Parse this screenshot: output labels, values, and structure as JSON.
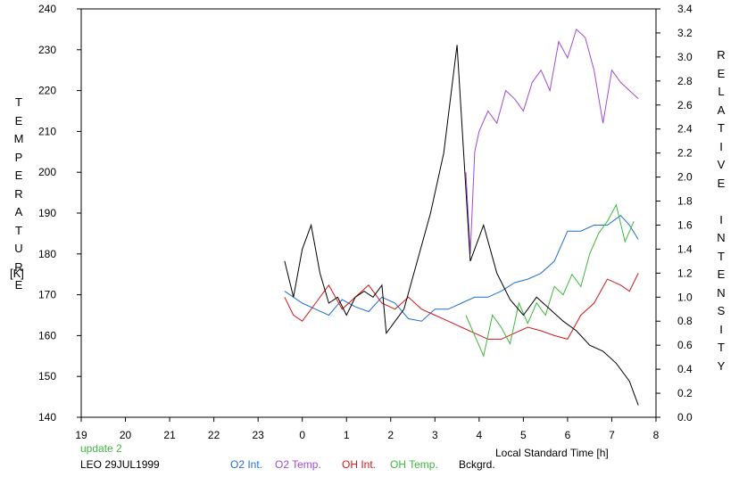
{
  "chart_data": {
    "type": "line",
    "xlabel": "Local Standard Time [h]",
    "ylabel_left": "TEMPERATURE",
    "ylabel_left_unit": "[K]",
    "ylabel_right": "RELATIVE INTENSITY",
    "xlim": [
      19,
      32
    ],
    "x_tick_labels": [
      "19",
      "20",
      "21",
      "22",
      "23",
      "0",
      "1",
      "2",
      "3",
      "4",
      "5",
      "6",
      "7",
      "8"
    ],
    "ylim_left": [
      140,
      240
    ],
    "y_left_ticks": [
      140,
      150,
      160,
      170,
      180,
      190,
      200,
      210,
      220,
      230,
      240
    ],
    "ylim_right": [
      0.0,
      3.4
    ],
    "y_right_ticks": [
      "0.0",
      "0.2",
      "0.4",
      "0.6",
      "0.8",
      "1.0",
      "1.2",
      "1.4",
      "1.6",
      "1.8",
      "2.0",
      "2.2",
      "2.4",
      "2.6",
      "2.8",
      "3.0",
      "3.2",
      "3.4"
    ],
    "grid": false,
    "series": [
      {
        "name": "O2 Int.",
        "color": "#1f6fd1",
        "axis": "right",
        "x": [
          23.6,
          23.8,
          24.0,
          24.3,
          24.6,
          24.9,
          25.2,
          25.5,
          25.8,
          26.1,
          26.4,
          26.7,
          27.0,
          27.3,
          27.6,
          27.9,
          28.2,
          28.5,
          28.8,
          29.1,
          29.4,
          29.7,
          30.0,
          30.3,
          30.6,
          30.9,
          31.2,
          31.4,
          31.6
        ],
        "y": [
          1.05,
          1.0,
          0.95,
          0.9,
          0.85,
          0.98,
          0.92,
          0.88,
          1.0,
          0.95,
          0.82,
          0.8,
          0.9,
          0.9,
          0.95,
          1.0,
          1.0,
          1.05,
          1.12,
          1.15,
          1.2,
          1.3,
          1.55,
          1.55,
          1.6,
          1.6,
          1.68,
          1.6,
          1.48
        ]
      },
      {
        "name": "O2 Temp.",
        "color": "#a04cd0",
        "axis": "left",
        "x": [
          27.7,
          27.8,
          27.9,
          28.0,
          28.2,
          28.4,
          28.6,
          28.8,
          29.0,
          29.2,
          29.4,
          29.6,
          29.8,
          30.0,
          30.2,
          30.4,
          30.6,
          30.8,
          31.0,
          31.2,
          31.4,
          31.6
        ],
        "y": [
          200,
          180,
          205,
          210,
          215,
          212,
          220,
          218,
          215,
          222,
          225,
          220,
          232,
          228,
          235,
          233,
          225,
          212,
          225,
          222,
          220,
          218
        ]
      },
      {
        "name": "OH Int.",
        "color": "#d01818",
        "axis": "right",
        "x": [
          23.6,
          23.8,
          24.0,
          24.3,
          24.6,
          24.9,
          25.2,
          25.5,
          25.8,
          26.1,
          26.4,
          26.7,
          27.0,
          27.3,
          27.6,
          27.9,
          28.2,
          28.5,
          28.8,
          29.1,
          29.4,
          29.7,
          30.0,
          30.3,
          30.6,
          30.9,
          31.2,
          31.4,
          31.6
        ],
        "y": [
          1.0,
          0.85,
          0.8,
          0.95,
          1.1,
          0.9,
          1.0,
          1.1,
          0.95,
          0.9,
          1.0,
          0.9,
          0.85,
          0.8,
          0.75,
          0.7,
          0.65,
          0.65,
          0.7,
          0.75,
          0.72,
          0.68,
          0.65,
          0.85,
          0.95,
          1.15,
          1.1,
          1.05,
          1.2
        ]
      },
      {
        "name": "OH Temp.",
        "color": "#3cb83c",
        "axis": "left",
        "x": [
          27.7,
          27.9,
          28.1,
          28.3,
          28.5,
          28.7,
          28.9,
          29.1,
          29.3,
          29.5,
          29.7,
          29.9,
          30.1,
          30.3,
          30.5,
          30.7,
          30.9,
          31.1,
          31.3,
          31.5
        ],
        "y": [
          165,
          160,
          155,
          165,
          162,
          158,
          168,
          163,
          168,
          165,
          172,
          170,
          175,
          172,
          180,
          185,
          188,
          192,
          183,
          188
        ]
      },
      {
        "name": "Bckgrd.",
        "color": "#000000",
        "axis": "right",
        "x": [
          23.6,
          23.8,
          24.0,
          24.2,
          24.4,
          24.6,
          24.8,
          25.0,
          25.2,
          25.4,
          25.6,
          25.8,
          25.9,
          26.0,
          26.1,
          26.3,
          26.6,
          26.9,
          27.2,
          27.5,
          27.8,
          28.1,
          28.4,
          28.7,
          29.0,
          29.3,
          29.6,
          29.9,
          30.2,
          30.5,
          30.8,
          31.1,
          31.4,
          31.5,
          31.6
        ],
        "y": [
          1.3,
          1.0,
          1.4,
          1.6,
          1.2,
          0.95,
          1.0,
          0.85,
          1.0,
          1.05,
          1.0,
          1.1,
          0.7,
          0.75,
          0.8,
          0.9,
          1.3,
          1.7,
          2.2,
          3.1,
          1.3,
          1.6,
          1.2,
          0.98,
          0.85,
          1.0,
          0.9,
          0.8,
          0.72,
          0.6,
          0.55,
          0.45,
          0.3,
          0.2,
          0.1
        ]
      }
    ]
  },
  "footer": {
    "update": "update 2",
    "update_color": "#3cb83c",
    "location_date": "LEO 29JUL1999"
  }
}
